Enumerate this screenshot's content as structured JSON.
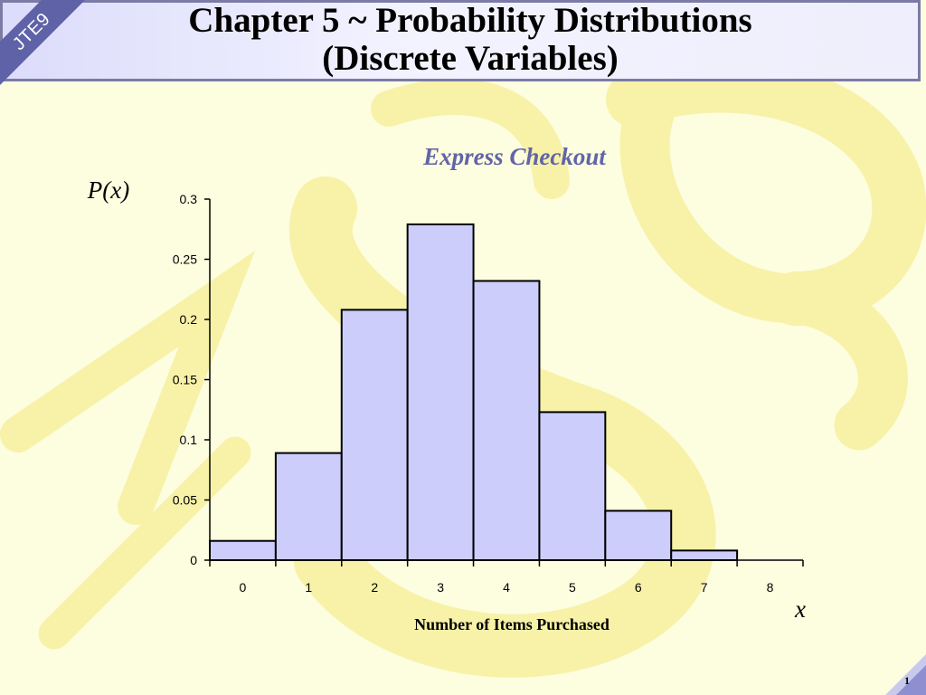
{
  "header": {
    "badge": "JTE9",
    "title_line1": "Chapter 5 ~ Probability Distributions",
    "title_line2": "(Discrete Variables)"
  },
  "page_number": "1",
  "colors": {
    "bar_fill": "#cccdfb",
    "title_accent": "#6264a7",
    "watermark": "#f7f2a8",
    "header_border": "#7b7ba6"
  },
  "chart_data": {
    "type": "bar",
    "title": "Express Checkout",
    "ylabel": "P(x)",
    "xlabel": "Number of Items Purchased",
    "x_axis_symbol": "x",
    "categories": [
      "0",
      "1",
      "2",
      "3",
      "4",
      "5",
      "6",
      "7",
      "8"
    ],
    "values": [
      0.016,
      0.089,
      0.208,
      0.279,
      0.232,
      0.123,
      0.041,
      0.008,
      0
    ],
    "yticks": [
      "0",
      "0.05",
      "0.1",
      "0.15",
      "0.2",
      "0.25",
      "0.3"
    ],
    "ylim": [
      0,
      0.3
    ],
    "grid": false,
    "legend": "none"
  }
}
